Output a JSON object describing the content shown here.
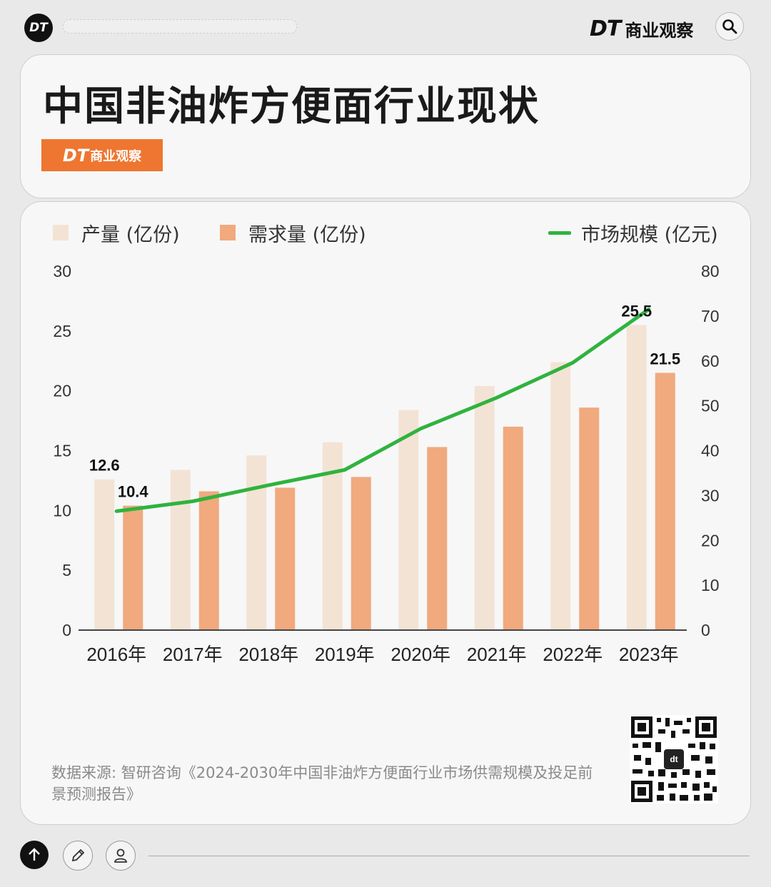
{
  "header": {
    "circle_logo": "DT",
    "brand_dt": "DT",
    "brand_cn": "商业观察",
    "search_icon": "search-icon"
  },
  "title": "中国非油炸方便面行业现状",
  "tag": {
    "dt": "DT",
    "cn": "商业观察"
  },
  "legend": {
    "production": "产量 (亿份)",
    "demand": "需求量 (亿份)",
    "market": "市场规模 (亿元)"
  },
  "colors": {
    "production": "#f3e3d5",
    "demand": "#f1a97e",
    "market": "#2fb33e",
    "tag_bg": "#ee7630"
  },
  "chart_data": {
    "type": "bar",
    "categories": [
      "2016年",
      "2017年",
      "2018年",
      "2019年",
      "2020年",
      "2021年",
      "2022年",
      "2023年"
    ],
    "series": [
      {
        "name": "产量 (亿份)",
        "type": "bar",
        "axis": "left",
        "values": [
          12.6,
          13.4,
          14.6,
          15.7,
          18.4,
          20.4,
          22.4,
          25.5
        ]
      },
      {
        "name": "需求量 (亿份)",
        "type": "bar",
        "axis": "left",
        "values": [
          10.4,
          11.6,
          11.9,
          12.8,
          15.3,
          17.0,
          18.6,
          21.5
        ]
      },
      {
        "name": "市场规模 (亿元)",
        "type": "line",
        "axis": "right",
        "values": [
          26.5,
          28.7,
          32.3,
          35.7,
          44.9,
          51.8,
          59.6,
          71.5
        ]
      }
    ],
    "y_left": {
      "ylim": [
        0,
        30
      ],
      "ticks": [
        "0",
        "5",
        "10",
        "15",
        "20",
        "25",
        "30"
      ]
    },
    "y_right": {
      "ylim": [
        0,
        80
      ],
      "ticks": [
        "0",
        "10",
        "20",
        "30",
        "40",
        "50",
        "60",
        "70",
        "80"
      ]
    },
    "data_labels": [
      {
        "series": 0,
        "index": 0,
        "text": "12.6"
      },
      {
        "series": 1,
        "index": 0,
        "text": "10.4"
      },
      {
        "series": 0,
        "index": 7,
        "text": "25.5"
      },
      {
        "series": 1,
        "index": 7,
        "text": "21.5"
      }
    ],
    "legend_position": "top",
    "grid": false
  },
  "source": "数据来源: 智研咨询《2024-2030年中国非油炸方便面行业市场供需规模及投足前景预测报告》",
  "nav": {
    "up_icon": "arrow-up-icon",
    "edit_icon": "pencil-icon",
    "user_icon": "user-icon"
  }
}
